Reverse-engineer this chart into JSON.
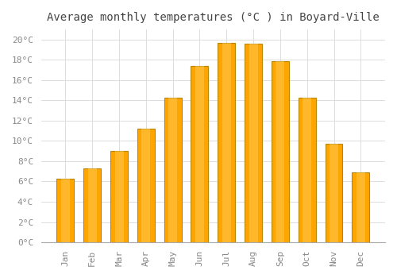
{
  "title": "Average monthly temperatures (°C ) in Boyard-Ville",
  "months": [
    "Jan",
    "Feb",
    "Mar",
    "Apr",
    "May",
    "Jun",
    "Jul",
    "Aug",
    "Sep",
    "Oct",
    "Nov",
    "Dec"
  ],
  "temperatures": [
    6.3,
    7.3,
    9.0,
    11.2,
    14.3,
    17.4,
    19.7,
    19.6,
    17.9,
    14.3,
    9.7,
    6.9
  ],
  "bar_color": "#FFA500",
  "bar_edge_color": "#B8860B",
  "ylim": [
    0,
    21
  ],
  "yticks": [
    0,
    2,
    4,
    6,
    8,
    10,
    12,
    14,
    16,
    18,
    20
  ],
  "background_color": "#FFFFFF",
  "grid_color": "#DDDDDD",
  "title_fontsize": 10,
  "tick_fontsize": 8,
  "title_color": "#444444",
  "tick_color": "#888888"
}
